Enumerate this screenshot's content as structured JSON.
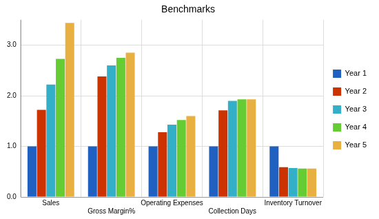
{
  "chart_data": {
    "type": "bar",
    "title": "Benchmarks",
    "categories": [
      "Sales",
      "Gross Margin%",
      "Operating Expenses",
      "Collection Days",
      "Inventory Turnover"
    ],
    "series": [
      {
        "name": "Year 1",
        "color": "#2060c0",
        "values": [
          1.0,
          1.0,
          1.0,
          1.0,
          1.0
        ]
      },
      {
        "name": "Year 2",
        "color": "#cc3300",
        "values": [
          1.72,
          2.38,
          1.28,
          1.71,
          0.59
        ]
      },
      {
        "name": "Year 3",
        "color": "#33b0c8",
        "values": [
          2.22,
          2.6,
          1.43,
          1.9,
          0.57
        ]
      },
      {
        "name": "Year 4",
        "color": "#66cc33",
        "values": [
          2.73,
          2.75,
          1.52,
          1.93,
          0.56
        ]
      },
      {
        "name": "Year 5",
        "color": "#e8b040",
        "values": [
          3.44,
          2.85,
          1.6,
          1.93,
          0.56
        ]
      }
    ],
    "ylim": [
      0,
      3.5
    ],
    "yticks": [
      {
        "value": 0,
        "label": "0.0"
      },
      {
        "value": 1,
        "label": "1.0"
      },
      {
        "value": 2,
        "label": "2.0"
      },
      {
        "value": 3,
        "label": "3.0"
      }
    ],
    "grid": true,
    "legend": "right"
  }
}
